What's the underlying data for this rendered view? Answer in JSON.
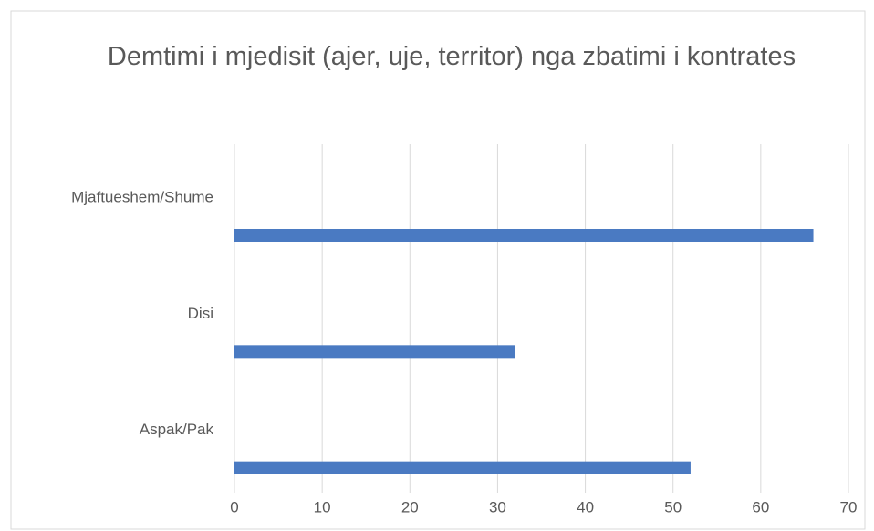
{
  "chart_data": {
    "type": "hbar",
    "title": "Demtimi i mjedisit (ajer, uje, territor) nga zbatimi i kontrates",
    "categories": [
      "Mjaftueshem/Shume",
      "Disi",
      "Aspak/Pak"
    ],
    "values": [
      66,
      32,
      52
    ],
    "color": "#4a7ac2",
    "xlim": [
      0,
      70
    ],
    "xticks": [
      0,
      10,
      20,
      30,
      40,
      50,
      60,
      70
    ],
    "grid": true
  }
}
